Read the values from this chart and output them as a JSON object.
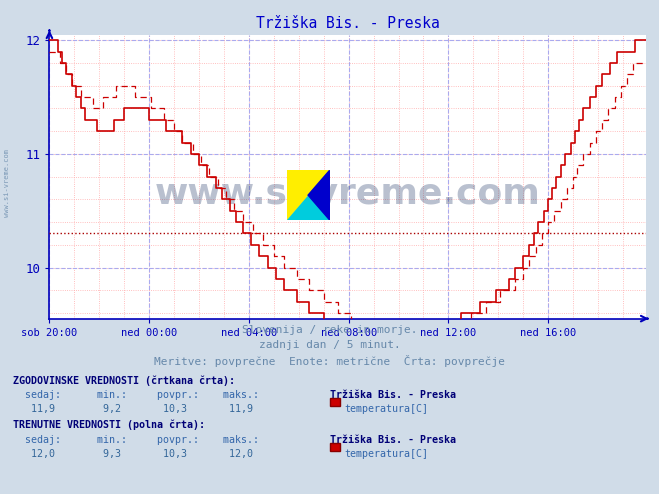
{
  "title": "Tržiška Bis. - Preska",
  "title_color": "#0000cc",
  "bg_color": "#d0dce8",
  "plot_bg_color": "#ffffff",
  "axis_color": "#0000bb",
  "tick_color": "#0000bb",
  "line_color": "#cc0000",
  "avg_line_value": 10.3,
  "ylim_min": 9.55,
  "ylim_max": 12.05,
  "yticks": [
    10,
    11,
    12
  ],
  "watermark_text": "www.si-vreme.com",
  "watermark_color": "#1a3060",
  "watermark_alpha": 0.3,
  "subtitle1": "Slovenija / reke in morje.",
  "subtitle2": "zadnji dan / 5 minut.",
  "subtitle3": "Meritve: povprečne  Enote: metrične  Črta: povprečje",
  "subtitle_color": "#6688aa",
  "label1_title": "ZGODOVINSKE VREDNOSTI (črtkana črta):",
  "label1_cols": "  sedaj:      min.:     povpr.:    maks.:",
  "label1_vals": "   11,9        9,2       10,3       11,9",
  "label1_station": "Tržiška Bis. - Preska",
  "label1_series": "temperatura[C]",
  "label2_title": "TRENUTNE VREDNOSTI (polna črta):",
  "label2_cols": "  sedaj:      min.:     povpr.:    maks.:",
  "label2_vals": "   12,0        9,3       10,3       12,0",
  "label2_station": "Tržiška Bis. - Preska",
  "label2_series": "temperatura[C]",
  "label_color_bold": "#000077",
  "label_color_normal": "#3366aa",
  "label_color_values": "#336699",
  "square_color": "#cc0000",
  "xtick_labels": [
    "sob 20:00",
    "ned 00:00",
    "ned 04:00",
    "ned 08:00",
    "ned 12:00",
    "ned 16:00"
  ],
  "xtick_positions": [
    0,
    48,
    96,
    144,
    192,
    240
  ],
  "total_points": 288
}
